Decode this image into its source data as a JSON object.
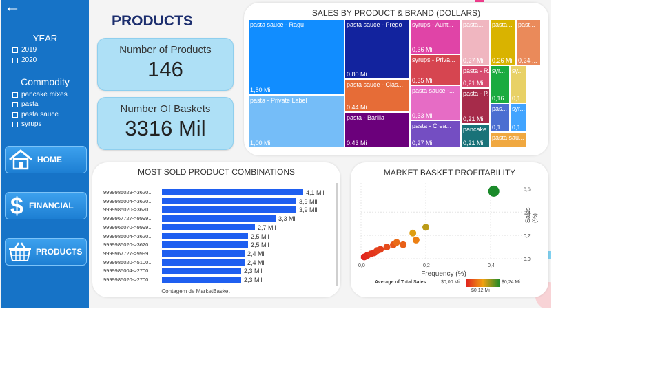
{
  "nav": {
    "back_arrow": "←"
  },
  "filters": {
    "year": {
      "title": "YEAR",
      "options": [
        "2019",
        "2020"
      ]
    },
    "commodity": {
      "title": "Commodity",
      "options": [
        "pancake mixes",
        "pasta",
        "pasta sauce",
        "syrups"
      ]
    }
  },
  "buttons": {
    "home": "HOME",
    "financial": "FINANCIAL",
    "products": "PRODUCTS"
  },
  "page_title": "PRODUCTS",
  "kpis": {
    "products": {
      "label": "Number of Products",
      "value": "146"
    },
    "baskets": {
      "label": "Number Of Baskets",
      "value": "3316 Mil"
    }
  },
  "treemap": {
    "title": "SALES BY PRODUCT & BRAND (DOLLARS)",
    "items": [
      {
        "label": "pasta sauce - Ragu",
        "value": "1,50 Mi",
        "color": "#118dff"
      },
      {
        "label": "pasta - Private Label",
        "value": "1,00 Mi",
        "color": "#75bdf8"
      },
      {
        "label": "pasta sauce - Prego",
        "value": "0,80 Mi",
        "color": "#12239e"
      },
      {
        "label": "pasta sauce - Clas...",
        "value": "0,44 Mi",
        "color": "#e66c37"
      },
      {
        "label": "pasta - Barilla",
        "value": "0,43 Mi",
        "color": "#6b007b"
      },
      {
        "label": "syrups - Aunt...",
        "value": "0,36 Mi",
        "color": "#e044a7"
      },
      {
        "label": "syrups - Priva...",
        "value": "0,35 Mi",
        "color": "#d64550"
      },
      {
        "label": "pasta sauce -...",
        "value": "0,33 Mi",
        "color": "#e66cc5"
      },
      {
        "label": "pasta - Crea...",
        "value": "0,27 Mi",
        "color": "#744ec2"
      },
      {
        "label": "pasta...",
        "value": "0,27 Mi",
        "color": "#f0b6c0"
      },
      {
        "label": "pasta...",
        "value": "0,26 Mi",
        "color": "#d9b300"
      },
      {
        "label": "past...",
        "value": "0,24 ...",
        "color": "#ea8a5a"
      },
      {
        "label": "pasta - R...",
        "value": "0,21 Mi",
        "color": "#d64a6e"
      },
      {
        "label": "pasta - P...",
        "value": "0,21 Mi",
        "color": "#a62b4a"
      },
      {
        "label": "pancake ...",
        "value": "0,21 Mi",
        "color": "#197278"
      },
      {
        "label": "syr...",
        "value": "0,16...",
        "color": "#1aab40"
      },
      {
        "label": "sy...",
        "value": "0,1...",
        "color": "#e8d166"
      },
      {
        "label": "pas...",
        "value": "0,1...",
        "color": "#4b6ed1"
      },
      {
        "label": "syr...",
        "value": "0,1...",
        "color": "#41a4ff"
      },
      {
        "label": "pasta sau...",
        "value": "",
        "color": "#f0a840"
      }
    ]
  },
  "combos": {
    "title": "MOST SOLD PRODUCT COMBINATIONS",
    "xlabel": "Contagem de MarketBasket",
    "bars": [
      {
        "label": "9999985029->3620...",
        "value": 4.1,
        "text": "4,1 Mil"
      },
      {
        "label": "9999985004->3620...",
        "value": 3.9,
        "text": "3,9 Mil"
      },
      {
        "label": "9999985020->3620...",
        "value": 3.9,
        "text": "3,9 Mil"
      },
      {
        "label": "9999967727->9999...",
        "value": 3.3,
        "text": "3,3 Mil"
      },
      {
        "label": "9999966070->9999...",
        "value": 2.7,
        "text": "2,7 Mil"
      },
      {
        "label": "9999985004->3620...",
        "value": 2.5,
        "text": "2,5 Mil"
      },
      {
        "label": "9999985020->3620...",
        "value": 2.5,
        "text": "2,5 Mil"
      },
      {
        "label": "9999967727->9999...",
        "value": 2.4,
        "text": "2,4 Mil"
      },
      {
        "label": "9999985020->5100...",
        "value": 2.4,
        "text": "2,4 Mil"
      },
      {
        "label": "9999985004->2700...",
        "value": 2.3,
        "text": "2,3 Mil"
      },
      {
        "label": "9999985020->2700...",
        "value": 2.3,
        "text": "2,3 Mil"
      }
    ]
  },
  "scatter": {
    "title": "MARKET BASKET PROFITABILITY",
    "xlabel": "Frequency (%)",
    "ylabel": "Sales (%)",
    "xticks": [
      "0,0",
      "0,2",
      "0,4"
    ],
    "yticks": [
      "0,0",
      "0,2",
      "0,4",
      "0,6"
    ],
    "legend_title": "Average of Total Sales",
    "legend_min": "$0,00 Mi",
    "legend_mid": "$0,12 Mi",
    "legend_max": "$0,24 Mi",
    "colors": {
      "low": "#e02020",
      "mid": "#f0a010",
      "high": "#1a8a2a"
    }
  },
  "chart_data": [
    {
      "type": "bar",
      "title": "MOST SOLD PRODUCT COMBINATIONS",
      "xlabel": "Contagem de MarketBasket",
      "categories": [
        "9999985029->3620...",
        "9999985004->3620...",
        "9999985020->3620...",
        "9999967727->9999...",
        "9999966070->9999...",
        "9999985004->3620...",
        "9999985020->3620...",
        "9999967727->9999...",
        "9999985020->5100...",
        "9999985004->2700...",
        "9999985020->2700..."
      ],
      "values": [
        4.1,
        3.9,
        3.9,
        3.3,
        2.7,
        2.5,
        2.5,
        2.4,
        2.4,
        2.3,
        2.3
      ]
    },
    {
      "type": "scatter",
      "title": "MARKET BASKET PROFITABILITY",
      "xlabel": "Frequency (%)",
      "ylabel": "Sales (%)",
      "xlim": [
        0,
        0.5
      ],
      "ylim": [
        0,
        0.65
      ],
      "legend": "bottom",
      "points": [
        {
          "x": 0.41,
          "y": 0.58,
          "sales": 0.24
        },
        {
          "x": 0.2,
          "y": 0.27,
          "sales": 0.15
        },
        {
          "x": 0.16,
          "y": 0.22,
          "sales": 0.13
        },
        {
          "x": 0.17,
          "y": 0.16,
          "sales": 0.09
        },
        {
          "x": 0.11,
          "y": 0.14,
          "sales": 0.07
        },
        {
          "x": 0.13,
          "y": 0.12,
          "sales": 0.06
        },
        {
          "x": 0.1,
          "y": 0.12,
          "sales": 0.05
        },
        {
          "x": 0.08,
          "y": 0.1,
          "sales": 0.04
        },
        {
          "x": 0.06,
          "y": 0.08,
          "sales": 0.03
        },
        {
          "x": 0.05,
          "y": 0.07,
          "sales": 0.03
        },
        {
          "x": 0.04,
          "y": 0.05,
          "sales": 0.02
        },
        {
          "x": 0.03,
          "y": 0.04,
          "sales": 0.02
        },
        {
          "x": 0.02,
          "y": 0.03,
          "sales": 0.01
        },
        {
          "x": 0.015,
          "y": 0.02,
          "sales": 0.01
        },
        {
          "x": 0.01,
          "y": 0.015,
          "sales": 0.0
        }
      ]
    }
  ]
}
